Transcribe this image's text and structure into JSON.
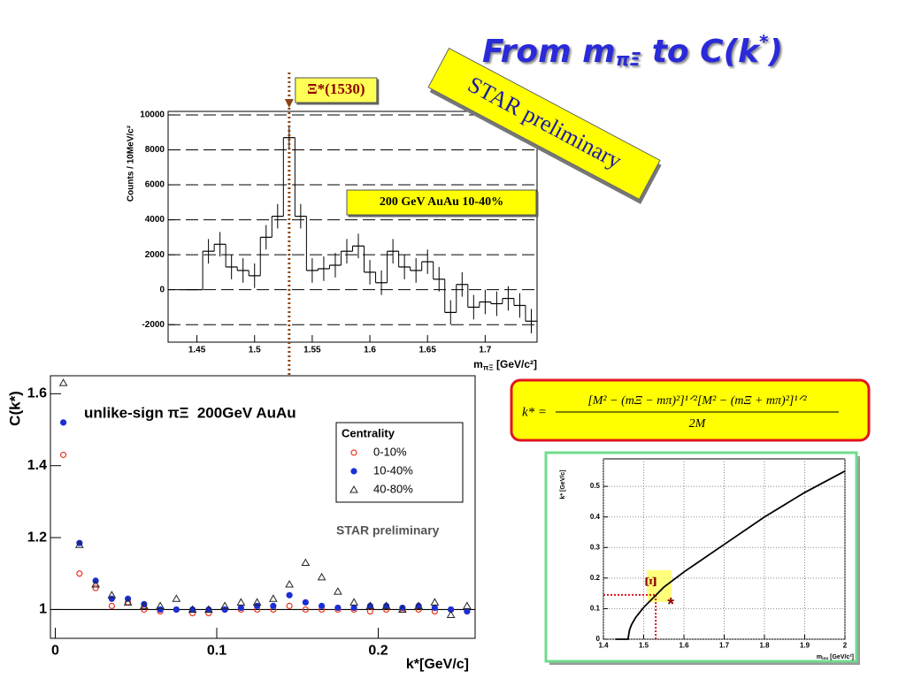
{
  "slide": {
    "title": {
      "main": "From m",
      "sub": "πΞ",
      "mid": " to C(k",
      "sup": "*",
      "end": ")"
    }
  },
  "formula": {
    "lhs": "k* =",
    "numerator": "[M² − (mΞ − mπ)²]¹ᐟ²[M² − (mΞ + mπ)²]¹ᐟ²",
    "denominator": "2M"
  },
  "chart_data": [
    {
      "type": "histogram",
      "bins": [
        1.435,
        1.445,
        1.455,
        1.465,
        1.475,
        1.485,
        1.495,
        1.505,
        1.515,
        1.525,
        1.535,
        1.545,
        1.555,
        1.565,
        1.575,
        1.585,
        1.595,
        1.605,
        1.615,
        1.625,
        1.635,
        1.645,
        1.655,
        1.665,
        1.675,
        1.685,
        1.695,
        1.705,
        1.715,
        1.725,
        1.735,
        1.745
      ],
      "values": [
        0,
        0,
        2200,
        2600,
        1300,
        1100,
        800,
        3000,
        4200,
        8700,
        4200,
        1100,
        1200,
        1400,
        2200,
        2500,
        1000,
        400,
        2200,
        1300,
        1100,
        1600,
        600,
        -1300,
        300,
        -1000,
        -700,
        -800,
        -500,
        -900,
        -1800
      ],
      "errors": [
        0,
        0,
        700,
        700,
        700,
        700,
        700,
        700,
        700,
        700,
        700,
        700,
        700,
        700,
        700,
        700,
        700,
        700,
        700,
        700,
        700,
        700,
        700,
        700,
        700,
        700,
        700,
        700,
        700,
        700,
        700
      ],
      "xlim": [
        1.425,
        1.745
      ],
      "ylim": [
        -3000,
        10200
      ],
      "xticks": [
        1.45,
        1.5,
        1.55,
        1.6,
        1.65,
        1.7
      ],
      "yticks": [
        -2000,
        0,
        2000,
        4000,
        6000,
        8000,
        10000
      ],
      "grid": "dashed",
      "y_label": "Counts / 10MeV/c²",
      "x_label": {
        "base": "m",
        "sub": "πΞ",
        "unit": " [GeV/c²]"
      },
      "peak_label": "Ξ*(1530)",
      "peak_x": 1.53,
      "box_label": "200 GeV AuAu 10-40%",
      "banner": "STAR preliminary"
    },
    {
      "type": "scatter",
      "x": [
        0.005,
        0.015,
        0.025,
        0.035,
        0.045,
        0.055,
        0.065,
        0.075,
        0.085,
        0.095,
        0.105,
        0.115,
        0.125,
        0.135,
        0.145,
        0.155,
        0.165,
        0.175,
        0.185,
        0.195,
        0.205,
        0.215,
        0.225,
        0.235,
        0.245,
        0.255
      ],
      "series": [
        {
          "name": "0-10%",
          "color": "#e8321e",
          "marker": "open-circle",
          "values": [
            1.43,
            1.1,
            1.06,
            1.01,
            1.02,
            1.0,
            0.995,
            1.0,
            0.99,
            0.99,
            1.0,
            1.0,
            1.0,
            1.0,
            1.01,
            1.0,
            1.0,
            1.0,
            1.0,
            0.995,
            1.0,
            1.0,
            1.0,
            0.995,
            1.0,
            0.995
          ]
        },
        {
          "name": "10-40%",
          "color": "#1a2fd6",
          "marker": "filled-circle",
          "values": [
            1.52,
            1.185,
            1.08,
            1.03,
            1.03,
            1.015,
            1.0,
            1.0,
            1.0,
            1.0,
            1.0,
            1.005,
            1.01,
            1.01,
            1.04,
            1.02,
            1.01,
            1.005,
            1.005,
            1.01,
            1.01,
            1.005,
            1.01,
            1.005,
            1.0,
            0.995
          ]
        },
        {
          "name": "40-80%",
          "color": "#222222",
          "marker": "open-triangle",
          "values": [
            1.63,
            1.18,
            1.07,
            1.04,
            1.02,
            1.01,
            1.01,
            1.03,
            1.0,
            1.0,
            1.01,
            1.02,
            1.02,
            1.03,
            1.07,
            1.13,
            1.09,
            1.05,
            1.02,
            1.01,
            1.01,
            1.0,
            1.01,
            1.02,
            0.985,
            1.01
          ]
        }
      ],
      "xlim": [
        -0.003,
        0.26
      ],
      "ylim": [
        0.92,
        1.65
      ],
      "xticks": [
        0,
        0.1,
        0.2
      ],
      "yticks": [
        1,
        1.2,
        1.4,
        1.6
      ],
      "hline": 1,
      "x_label": "k*[GeV/c]",
      "y_label": "C(k*)",
      "legend_title": "Centrality",
      "legend": "upper right",
      "annotation": "unlike-sign πΞ  200GeV AuAu",
      "watermark": "STAR preliminary"
    },
    {
      "type": "line",
      "x": [
        1.43,
        1.461,
        1.465,
        1.47,
        1.48,
        1.5,
        1.55,
        1.6,
        1.7,
        1.8,
        1.9,
        2.0
      ],
      "values": [
        0,
        0,
        0.031,
        0.048,
        0.071,
        0.104,
        0.17,
        0.22,
        0.31,
        0.4,
        0.48,
        0.55
      ],
      "color": "#000000",
      "xlim": [
        1.4,
        2
      ],
      "ylim": [
        0,
        0.59
      ],
      "xticks": [
        1.4,
        1.5,
        1.6,
        1.7,
        1.8,
        1.9,
        2
      ],
      "yticks": [
        0,
        0.1,
        0.2,
        0.3,
        0.4,
        0.5
      ],
      "grid": "dotted",
      "y_label": "k* [GeV/c]",
      "x_label": {
        "base": "m",
        "sub": "inv",
        "unit": " [GeV/c²]"
      },
      "guide": {
        "x": 1.53,
        "y": 0.145
      },
      "symbol": "Ξ",
      "symbol2": "*"
    }
  ]
}
